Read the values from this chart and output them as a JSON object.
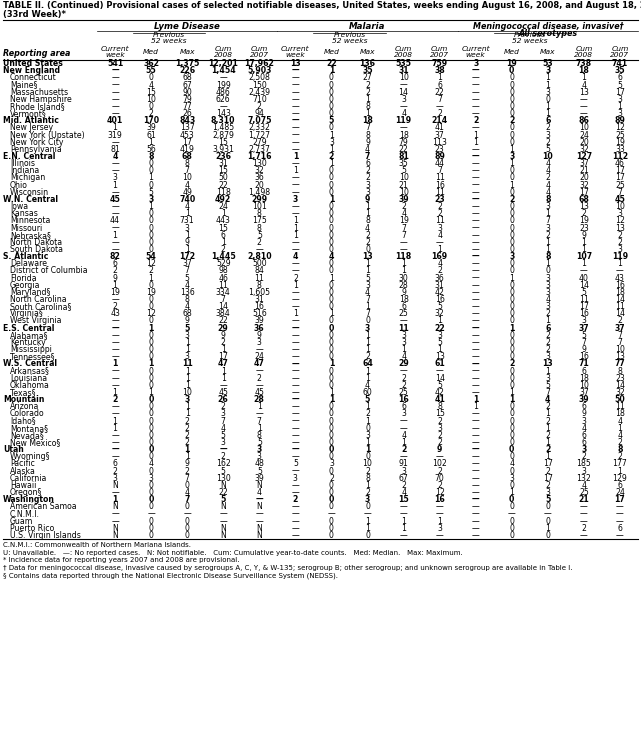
{
  "title": "TABLE II. (Continued) Provisional cases of selected notifiable diseases, United States, weeks ending August 16, 2008, and August 18, 2007",
  "title2": "(33rd Week)*",
  "col_headers": {
    "disease1": "Lyme Disease",
    "disease2": "Malaria",
    "disease3": "Meningococcal disease, invasive†\nAll serotypes"
  },
  "area_label": "Reporting area",
  "rows": [
    [
      "United States",
      "541",
      "362",
      "1,375",
      "12,201",
      "17,962",
      "13",
      "22",
      "136",
      "535",
      "759",
      "3",
      "19",
      "53",
      "738",
      "741"
    ],
    [
      "New England",
      "—",
      "55",
      "226",
      "1,454",
      "5,903",
      "—",
      "1",
      "35",
      "31",
      "38",
      "—",
      "0",
      "3",
      "18",
      "35"
    ],
    [
      "Connecticut",
      "—",
      "0",
      "68",
      "—",
      "2,508",
      "—",
      "0",
      "27",
      "10",
      "1",
      "—",
      "0",
      "1",
      "1",
      "6"
    ],
    [
      "Maine§",
      "—",
      "4",
      "67",
      "199",
      "150",
      "—",
      "0",
      "2",
      "—",
      "6",
      "—",
      "0",
      "1",
      "4",
      "5"
    ],
    [
      "Massachusetts",
      "—",
      "15",
      "90",
      "486",
      "2,439",
      "—",
      "0",
      "2",
      "14",
      "22",
      "—",
      "0",
      "3",
      "13",
      "17"
    ],
    [
      "New Hampshire",
      "—",
      "10",
      "79",
      "626",
      "710",
      "—",
      "0",
      "1",
      "3",
      "7",
      "—",
      "0",
      "0",
      "—",
      "3"
    ],
    [
      "Rhode Island§",
      "—",
      "0",
      "77",
      "—",
      "2",
      "—",
      "0",
      "8",
      "—",
      "—",
      "—",
      "0",
      "1",
      "—",
      "1"
    ],
    [
      "Vermont§",
      "—",
      "2",
      "26",
      "143",
      "94",
      "—",
      "0",
      "1",
      "4",
      "2",
      "—",
      "0",
      "1",
      "—",
      "3"
    ],
    [
      "Mid. Atlantic",
      "401",
      "170",
      "843",
      "8,310",
      "7,075",
      "—",
      "5",
      "18",
      "119",
      "214",
      "2",
      "2",
      "6",
      "86",
      "89"
    ],
    [
      "New Jersey",
      "1",
      "39",
      "137",
      "1,485",
      "2,332",
      "—",
      "0",
      "7",
      "—",
      "41",
      "—",
      "0",
      "2",
      "10",
      "12"
    ],
    [
      "New York (Upstate)",
      "319",
      "61",
      "453",
      "2,879",
      "1,727",
      "—",
      "1",
      "8",
      "18",
      "37",
      "1",
      "0",
      "3",
      "24",
      "25"
    ],
    [
      "New York City",
      "—",
      "1",
      "17",
      "15",
      "279",
      "—",
      "3",
      "9",
      "79",
      "113",
      "1",
      "0",
      "2",
      "20",
      "19"
    ],
    [
      "Pennsylvania",
      "81",
      "56",
      "419",
      "3,931",
      "2,737",
      "—",
      "1",
      "4",
      "22",
      "23",
      "—",
      "1",
      "5",
      "32",
      "33"
    ],
    [
      "E.N. Central",
      "4",
      "8",
      "68",
      "236",
      "1,716",
      "1",
      "2",
      "7",
      "81",
      "89",
      "—",
      "3",
      "10",
      "127",
      "112"
    ],
    [
      "Illinois",
      "—",
      "0",
      "8",
      "31",
      "130",
      "—",
      "1",
      "6",
      "35",
      "44",
      "—",
      "1",
      "4",
      "37",
      "46"
    ],
    [
      "Indiana",
      "—",
      "0",
      "7",
      "15",
      "32",
      "1",
      "0",
      "2",
      "5",
      "7",
      "—",
      "0",
      "4",
      "21",
      "17"
    ],
    [
      "Michigan",
      "3",
      "1",
      "10",
      "50",
      "36",
      "—",
      "0",
      "2",
      "10",
      "11",
      "—",
      "0",
      "2",
      "20",
      "17"
    ],
    [
      "Ohio",
      "1",
      "0",
      "4",
      "22",
      "20",
      "—",
      "0",
      "3",
      "21",
      "16",
      "—",
      "1",
      "4",
      "32",
      "25"
    ],
    [
      "Wisconsin",
      "—",
      "5",
      "49",
      "118",
      "1,498",
      "—",
      "0",
      "3",
      "10",
      "11",
      "—",
      "0",
      "4",
      "17",
      "7"
    ],
    [
      "W.N. Central",
      "45",
      "3",
      "740",
      "492",
      "299",
      "3",
      "1",
      "9",
      "39",
      "23",
      "—",
      "2",
      "8",
      "68",
      "45"
    ],
    [
      "Iowa",
      "—",
      "1",
      "4",
      "24",
      "101",
      "—",
      "0",
      "1",
      "2",
      "2",
      "—",
      "0",
      "3",
      "13",
      "10"
    ],
    [
      "Kansas",
      "—",
      "0",
      "1",
      "1",
      "8",
      "—",
      "0",
      "1",
      "4",
      "2",
      "—",
      "0",
      "1",
      "2",
      "3"
    ],
    [
      "Minnesota",
      "44",
      "0",
      "731",
      "443",
      "175",
      "1",
      "0",
      "8",
      "19",
      "11",
      "—",
      "0",
      "7",
      "19",
      "12"
    ],
    [
      "Missouri",
      "—",
      "0",
      "3",
      "15",
      "8",
      "1",
      "0",
      "4",
      "7",
      "3",
      "—",
      "0",
      "3",
      "23",
      "13"
    ],
    [
      "Nebraska§",
      "1",
      "0",
      "1",
      "6",
      "5",
      "1",
      "0",
      "2",
      "7",
      "4",
      "—",
      "0",
      "2",
      "9",
      "2"
    ],
    [
      "North Dakota",
      "—",
      "0",
      "9",
      "1",
      "2",
      "—",
      "0",
      "2",
      "—",
      "—",
      "—",
      "0",
      "1",
      "1",
      "2"
    ],
    [
      "South Dakota",
      "—",
      "0",
      "1",
      "2",
      "—",
      "—",
      "0",
      "0",
      "—",
      "1",
      "—",
      "0",
      "1",
      "1",
      "3"
    ],
    [
      "S. Atlantic",
      "82",
      "54",
      "172",
      "1,445",
      "2,810",
      "4",
      "4",
      "13",
      "118",
      "169",
      "—",
      "3",
      "8",
      "107",
      "119"
    ],
    [
      "Delaware",
      "6",
      "12",
      "37",
      "529",
      "500",
      "—",
      "0",
      "1",
      "1",
      "4",
      "—",
      "0",
      "1",
      "1",
      "1"
    ],
    [
      "District of Columbia",
      "2",
      "2",
      "7",
      "98",
      "84",
      "—",
      "0",
      "1",
      "1",
      "2",
      "—",
      "0",
      "0",
      "—",
      "—"
    ],
    [
      "Florida",
      "9",
      "1",
      "5",
      "46",
      "11",
      "2",
      "1",
      "5",
      "30",
      "36",
      "—",
      "1",
      "3",
      "40",
      "43"
    ],
    [
      "Georgia",
      "1",
      "0",
      "4",
      "11",
      "8",
      "1",
      "0",
      "3",
      "28",
      "31",
      "—",
      "0",
      "3",
      "14",
      "16"
    ],
    [
      "Maryland§",
      "19",
      "19",
      "136",
      "334",
      "1,605",
      "—",
      "0",
      "4",
      "9",
      "42",
      "—",
      "0",
      "3",
      "5",
      "18"
    ],
    [
      "North Carolina",
      "—",
      "0",
      "8",
      "7",
      "31",
      "—",
      "0",
      "7",
      "18",
      "16",
      "—",
      "0",
      "4",
      "11",
      "14"
    ],
    [
      "South Carolina§",
      "2",
      "0",
      "4",
      "14",
      "16",
      "—",
      "0",
      "1",
      "6",
      "5",
      "—",
      "0",
      "3",
      "17",
      "11"
    ],
    [
      "Virginia§",
      "43",
      "12",
      "68",
      "384",
      "516",
      "1",
      "1",
      "7",
      "25",
      "32",
      "—",
      "0",
      "2",
      "16",
      "14"
    ],
    [
      "West Virginia",
      "—",
      "0",
      "9",
      "22",
      "39",
      "—",
      "0",
      "0",
      "—",
      "1",
      "—",
      "0",
      "1",
      "3",
      "2"
    ],
    [
      "E.S. Central",
      "—",
      "1",
      "5",
      "29",
      "36",
      "—",
      "0",
      "3",
      "11",
      "22",
      "—",
      "1",
      "6",
      "37",
      "37"
    ],
    [
      "Alabama§",
      "—",
      "0",
      "3",
      "9",
      "9",
      "—",
      "0",
      "1",
      "3",
      "3",
      "—",
      "0",
      "2",
      "5",
      "7"
    ],
    [
      "Kentucky",
      "—",
      "0",
      "1",
      "2",
      "3",
      "—",
      "0",
      "1",
      "3",
      "5",
      "—",
      "0",
      "2",
      "7",
      "7"
    ],
    [
      "Mississippi",
      "—",
      "0",
      "1",
      "1",
      "—",
      "—",
      "0",
      "1",
      "1",
      "1",
      "—",
      "0",
      "2",
      "9",
      "10"
    ],
    [
      "Tennessee§",
      "—",
      "0",
      "3",
      "17",
      "24",
      "—",
      "0",
      "2",
      "4",
      "13",
      "—",
      "0",
      "3",
      "16",
      "13"
    ],
    [
      "W.S. Central",
      "1",
      "1",
      "11",
      "47",
      "47",
      "—",
      "1",
      "64",
      "29",
      "61",
      "—",
      "2",
      "13",
      "71",
      "77"
    ],
    [
      "Arkansas§",
      "—",
      "0",
      "1",
      "1",
      "—",
      "—",
      "0",
      "1",
      "—",
      "—",
      "—",
      "0",
      "1",
      "6",
      "8"
    ],
    [
      "Louisiana",
      "—",
      "0",
      "1",
      "1",
      "2",
      "—",
      "0",
      "1",
      "2",
      "14",
      "—",
      "0",
      "3",
      "18",
      "23"
    ],
    [
      "Oklahoma",
      "—",
      "0",
      "1",
      "—",
      "—",
      "—",
      "0",
      "4",
      "2",
      "5",
      "—",
      "0",
      "5",
      "10",
      "14"
    ],
    [
      "Texas§",
      "1",
      "1",
      "10",
      "45",
      "45",
      "—",
      "1",
      "60",
      "25",
      "42",
      "—",
      "1",
      "7",
      "37",
      "32"
    ],
    [
      "Mountain",
      "2",
      "0",
      "3",
      "26",
      "28",
      "—",
      "1",
      "5",
      "16",
      "41",
      "1",
      "1",
      "4",
      "39",
      "50"
    ],
    [
      "Arizona",
      "—",
      "0",
      "1",
      "2",
      "1",
      "—",
      "0",
      "1",
      "6",
      "8",
      "1",
      "0",
      "2",
      "6",
      "11"
    ],
    [
      "Colorado",
      "—",
      "0",
      "1",
      "3",
      "—",
      "—",
      "0",
      "2",
      "3",
      "15",
      "—",
      "0",
      "1",
      "9",
      "18"
    ],
    [
      "Idaho§",
      "1",
      "0",
      "2",
      "7",
      "7",
      "—",
      "0",
      "1",
      "—",
      "2",
      "—",
      "0",
      "2",
      "3",
      "4"
    ],
    [
      "Montana§",
      "1",
      "0",
      "2",
      "4",
      "1",
      "—",
      "0",
      "0",
      "—",
      "3",
      "—",
      "0",
      "1",
      "4",
      "1"
    ],
    [
      "Nevada§",
      "—",
      "0",
      "2",
      "5",
      "8",
      "—",
      "0",
      "3",
      "4",
      "2",
      "—",
      "0",
      "2",
      "6",
      "4"
    ],
    [
      "New Mexico§",
      "—",
      "0",
      "2",
      "3",
      "5",
      "—",
      "0",
      "1",
      "1",
      "2",
      "—",
      "0",
      "1",
      "6",
      "2"
    ],
    [
      "Utah",
      "—",
      "0",
      "1",
      "—",
      "3",
      "—",
      "0",
      "1",
      "2",
      "9",
      "—",
      "0",
      "2",
      "3",
      "8"
    ],
    [
      "Wyoming§",
      "—",
      "0",
      "1",
      "2",
      "3",
      "—",
      "0",
      "0",
      "—",
      "—",
      "—",
      "0",
      "1",
      "2",
      "2"
    ],
    [
      "Pacific",
      "6",
      "4",
      "9",
      "162",
      "48",
      "5",
      "3",
      "10",
      "91",
      "102",
      "—",
      "4",
      "17",
      "185",
      "177"
    ],
    [
      "Alaska",
      "2",
      "0",
      "2",
      "5",
      "5",
      "—",
      "0",
      "2",
      "3",
      "2",
      "—",
      "0",
      "2",
      "3",
      "1"
    ],
    [
      "California",
      "3",
      "3",
      "7",
      "130",
      "39",
      "3",
      "2",
      "8",
      "67",
      "70",
      "—",
      "3",
      "17",
      "132",
      "129"
    ],
    [
      "Hawaii",
      "N",
      "0",
      "0",
      "N",
      "N",
      "—",
      "0",
      "1",
      "2",
      "2",
      "—",
      "0",
      "2",
      "4",
      "6"
    ],
    [
      "Oregon§",
      "—",
      "0",
      "4",
      "22",
      "4",
      "—",
      "0",
      "2",
      "4",
      "12",
      "—",
      "1",
      "3",
      "25",
      "24"
    ],
    [
      "Washington",
      "1",
      "0",
      "7",
      "5",
      "—",
      "2",
      "0",
      "3",
      "15",
      "16",
      "—",
      "0",
      "5",
      "21",
      "17"
    ],
    [
      "American Samoa",
      "N",
      "0",
      "0",
      "N",
      "N",
      "—",
      "0",
      "0",
      "—",
      "—",
      "—",
      "0",
      "0",
      "—",
      "—"
    ],
    [
      "C.N.M.I.",
      "—",
      "—",
      "—",
      "—",
      "—",
      "—",
      "—",
      "—",
      "—",
      "—",
      "—",
      "—",
      "—",
      "—",
      "—"
    ],
    [
      "Guam",
      "—",
      "0",
      "0",
      "—",
      "—",
      "—",
      "0",
      "1",
      "1",
      "1",
      "—",
      "0",
      "0",
      "—",
      "—"
    ],
    [
      "Puerto Rico",
      "N",
      "0",
      "0",
      "N",
      "N",
      "—",
      "0",
      "1",
      "1",
      "3",
      "—",
      "0",
      "1",
      "2",
      "6"
    ],
    [
      "U.S. Virgin Islands",
      "N",
      "0",
      "0",
      "N",
      "N",
      "—",
      "0",
      "0",
      "—",
      "—",
      "—",
      "0",
      "0",
      "—",
      "—"
    ]
  ],
  "bold_rows": [
    0,
    1,
    8,
    13,
    19,
    27,
    37,
    42,
    47,
    54,
    61
  ],
  "footnotes": [
    "C.N.M.I.: Commonwealth of Northern Mariana Islands.",
    "U: Unavailable.   —: No reported cases.   N: Not notifiable.   Cum: Cumulative year-to-date counts.   Med: Median.   Max: Maximum.",
    "* Incidence data for reporting years 2007 and 2008 are provisional.",
    "† Data for meningococcal disease, invasive caused by serogroups A, C, Y, & W-135; serogroup B; other serogroup; and unknown serogroup are available in Table I.",
    "§ Contains data reported through the National Electronic Disease Surveillance System (NEDSS)."
  ]
}
